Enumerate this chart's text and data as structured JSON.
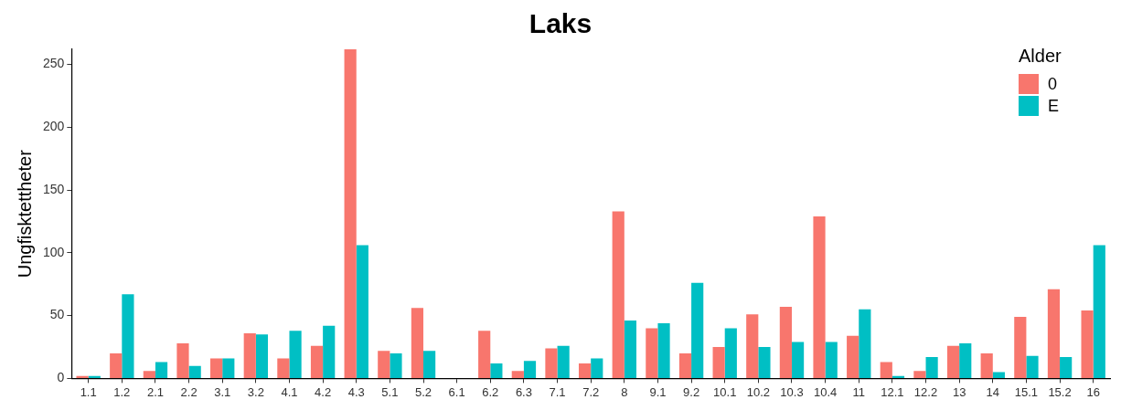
{
  "chart_data": {
    "type": "bar",
    "title": "Laks",
    "ylabel": "Ungfisktettheter",
    "legend_title": "Alder",
    "legend": "top right",
    "grid": false,
    "categories": [
      "1.1",
      "1.2",
      "2.1",
      "2.2",
      "3.1",
      "3.2",
      "4.1",
      "4.2",
      "4.3",
      "5.1",
      "5.2",
      "6.1",
      "6.2",
      "6.3",
      "7.1",
      "7.2",
      "8",
      "9.1",
      "9.2",
      "10.1",
      "10.2",
      "10.3",
      "10.4",
      "11",
      "12.1",
      "12.2",
      "13",
      "14",
      "15.1",
      "15.2",
      "16"
    ],
    "series": [
      {
        "name": "0",
        "color": "#f8766d",
        "values": [
          2,
          20,
          6,
          28,
          16,
          36,
          16,
          26,
          262,
          22,
          56,
          0,
          38,
          6,
          24,
          12,
          133,
          40,
          20,
          25,
          51,
          57,
          129,
          34,
          13,
          6,
          26,
          20,
          49,
          71,
          54
        ]
      },
      {
        "name": "E",
        "color": "#00bfc4",
        "values": [
          2,
          67,
          13,
          10,
          16,
          35,
          38,
          42,
          106,
          20,
          22,
          0,
          12,
          14,
          26,
          16,
          46,
          44,
          76,
          40,
          25,
          29,
          29,
          55,
          2,
          17,
          28,
          5,
          18,
          17,
          106
        ]
      }
    ],
    "ylim": [
      0,
      262
    ],
    "yticks": [
      0,
      50,
      100,
      150,
      200,
      250
    ]
  }
}
